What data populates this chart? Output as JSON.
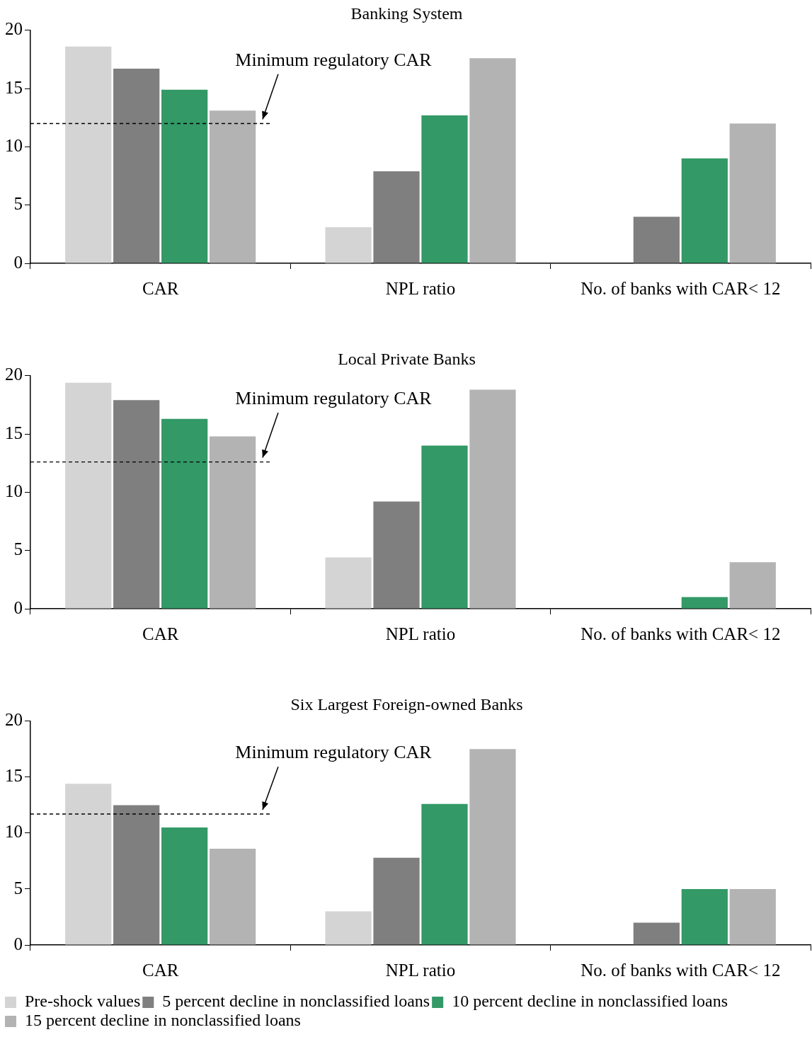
{
  "chart_data": [
    {
      "type": "bar",
      "title": "Banking System",
      "categories": [
        "CAR",
        "NPL ratio",
        "No. of banks with CAR< 12"
      ],
      "ylim": [
        0,
        20
      ],
      "yticks": [
        0,
        5,
        10,
        15,
        20
      ],
      "grid": false,
      "legend": false,
      "series": [
        {
          "color": "#d4d4d4",
          "values": [
            18.6,
            3.1,
            0
          ]
        },
        {
          "color": "#7f7f7f",
          "values": [
            16.7,
            7.9,
            4
          ]
        },
        {
          "color": "#339966",
          "values": [
            14.9,
            12.7,
            9
          ]
        },
        {
          "color": "#b3b3b3",
          "values": [
            13.1,
            17.6,
            12
          ]
        }
      ],
      "ref_lines": [
        {
          "axis": "y",
          "value": 12,
          "label": "Minimum regulatory CAR",
          "line_style": "dashed",
          "color": "#000000"
        }
      ]
    },
    {
      "type": "bar",
      "title": "Local Private Banks",
      "categories": [
        "CAR",
        "NPL ratio",
        "No. of banks with CAR< 12"
      ],
      "ylim": [
        0,
        20
      ],
      "yticks": [
        0,
        5,
        10,
        15,
        20
      ],
      "grid": false,
      "legend": false,
      "series": [
        {
          "color": "#d4d4d4",
          "values": [
            19.4,
            4.4,
            0
          ]
        },
        {
          "color": "#7f7f7f",
          "values": [
            17.9,
            9.2,
            0
          ]
        },
        {
          "color": "#339966",
          "values": [
            16.3,
            14.0,
            1
          ]
        },
        {
          "color": "#b3b3b3",
          "values": [
            14.8,
            18.8,
            4
          ]
        }
      ],
      "ref_lines": [
        {
          "axis": "y",
          "value": 12.6,
          "label": "Minimum regulatory CAR",
          "line_style": "dashed",
          "color": "#000000"
        }
      ]
    },
    {
      "type": "bar",
      "title": "Six Largest Foreign-owned Banks",
      "categories": [
        "CAR",
        "NPL ratio",
        "No. of banks with CAR< 12"
      ],
      "ylim": [
        0,
        20
      ],
      "yticks": [
        0,
        5,
        10,
        15,
        20
      ],
      "grid": false,
      "legend": "bottom",
      "series": [
        {
          "name": "Pre-shock values",
          "color": "#d4d4d4",
          "values": [
            14.4,
            3.0,
            0
          ]
        },
        {
          "name": "5 percent decline in nonclassified loans",
          "color": "#7f7f7f",
          "values": [
            12.5,
            7.8,
            2
          ]
        },
        {
          "name": "10 percent decline in nonclassified loans",
          "color": "#339966",
          "values": [
            10.5,
            12.6,
            5
          ]
        },
        {
          "name": "15 percent decline in nonclassified loans",
          "color": "#b3b3b3",
          "values": [
            8.6,
            17.5,
            5
          ]
        }
      ],
      "ref_lines": [
        {
          "axis": "y",
          "value": 11.7,
          "label": "Minimum regulatory CAR",
          "line_style": "dashed",
          "color": "#000000"
        }
      ]
    }
  ]
}
